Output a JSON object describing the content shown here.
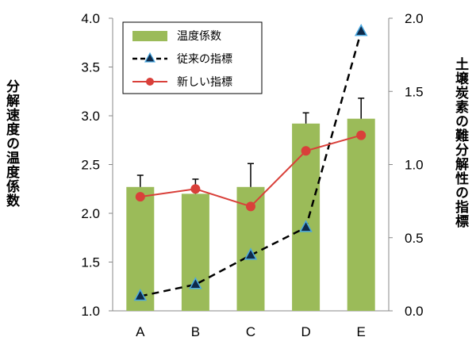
{
  "chart_data": {
    "type": "bar+line",
    "categories": [
      "A",
      "B",
      "C",
      "D",
      "E"
    ],
    "left_axis": {
      "label": "分解速度の温度係数",
      "range": [
        1.0,
        4.0
      ],
      "ticks": [
        "1.0",
        "1.5",
        "2.0",
        "2.5",
        "3.0",
        "3.5",
        "4.0"
      ]
    },
    "right_axis": {
      "label": "土壌炭素の難分解性の指標",
      "range": [
        0.0,
        2.0
      ],
      "ticks": [
        "0.0",
        "0.5",
        "1.0",
        "1.5",
        "2.0"
      ]
    },
    "series": [
      {
        "name": "温度係数",
        "kind": "bar",
        "axis": "left",
        "color": "#9bbb59",
        "values": [
          2.27,
          2.2,
          2.27,
          2.92,
          2.97
        ],
        "error_upper": [
          2.39,
          2.35,
          2.51,
          3.03,
          3.18
        ]
      },
      {
        "name": "従来の指標",
        "kind": "line",
        "axis": "right",
        "style": "dashed",
        "marker": "triangle",
        "color": "#000000",
        "marker_fill": "#0e2a4a",
        "marker_edge": "#4aa8e0",
        "values": [
          0.1,
          0.18,
          0.38,
          0.57,
          1.91
        ]
      },
      {
        "name": "新しい指標",
        "kind": "line",
        "axis": "left",
        "style": "solid",
        "marker": "circle",
        "color": "#d9403a",
        "values": [
          2.17,
          2.25,
          2.07,
          2.64,
          2.8
        ]
      }
    ],
    "legend_position": "top-left"
  }
}
